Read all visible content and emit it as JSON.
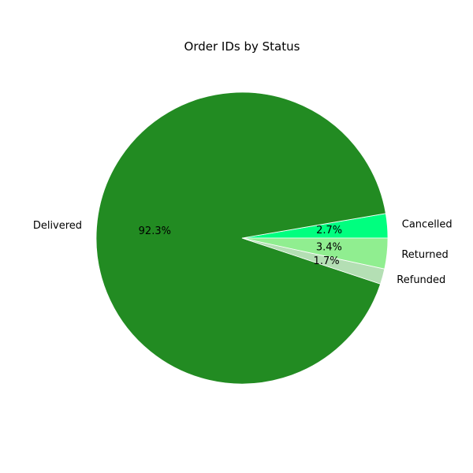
{
  "chart_data": {
    "type": "pie",
    "title": "Order IDs by Status",
    "start_angle_deg": 0,
    "direction": "counterclockwise",
    "slices": [
      {
        "label": "Cancelled",
        "value": 2.7,
        "pct_label": "2.7%",
        "color": "#00ff7f"
      },
      {
        "label": "Delivered",
        "value": 92.3,
        "pct_label": "92.3%",
        "color": "#228b22"
      },
      {
        "label": "Refunded",
        "value": 1.7,
        "pct_label": "1.7%",
        "color": "#b4dfb4"
      },
      {
        "label": "Returned",
        "value": 3.4,
        "pct_label": "3.4%",
        "color": "#90ee90"
      }
    ]
  }
}
